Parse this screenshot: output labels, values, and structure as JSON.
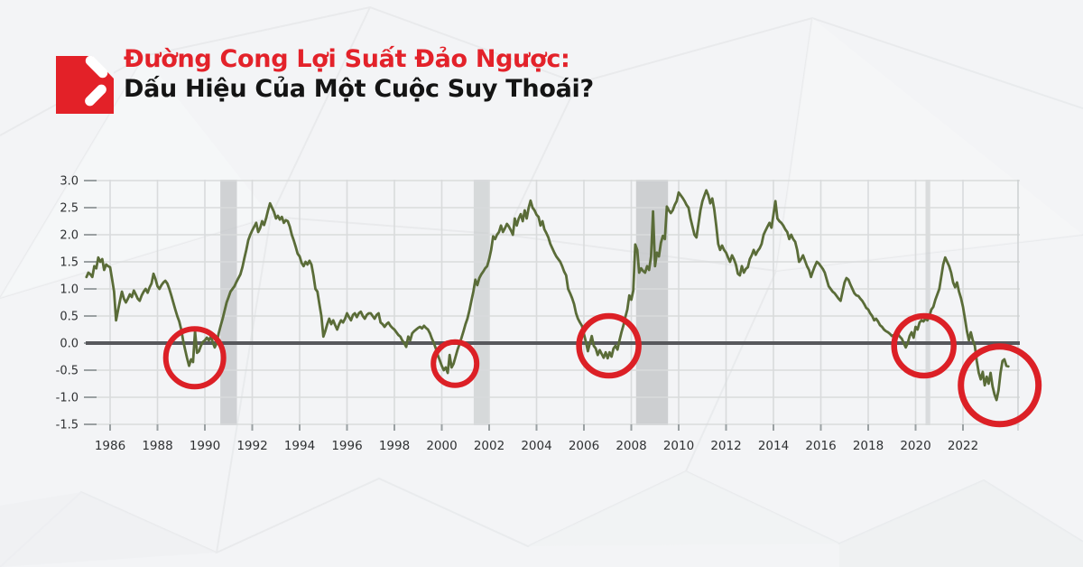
{
  "header": {
    "logo_color": "#e32128",
    "title_line1": "Đường Cong Lợi Suất Đảo Ngược:",
    "title_line1_color": "#e3222a",
    "title_line2": "Dấu Hiệu Của Một Cuộc Suy Thoái?",
    "title_line2_color": "#141414"
  },
  "chart_data": {
    "type": "line",
    "xlabel": "",
    "ylabel": "",
    "grid": true,
    "legend": false,
    "zero_line": true,
    "zero_line_color": "#57585c",
    "x_axis": {
      "range": [
        1985,
        2024.3
      ],
      "ticks": [
        1986,
        1988,
        1990,
        1992,
        1994,
        1996,
        1998,
        2000,
        2002,
        2004,
        2006,
        2008,
        2010,
        2012,
        2014,
        2016,
        2018,
        2020,
        2022
      ]
    },
    "y_axis": {
      "range": [
        -1.5,
        3.0
      ],
      "ticks": [
        3.0,
        2.5,
        2.0,
        1.5,
        1.0,
        0.5,
        0.0,
        -0.5,
        -1.0,
        -1.5
      ],
      "tick_labels": [
        "3.0",
        "2.5",
        "2.0",
        "1.5",
        "1.0",
        "0.5",
        "0.0",
        "-0.5",
        "-1.0",
        "-1.5"
      ]
    },
    "series": [
      {
        "color": "#5a6c38",
        "start_year": 1985,
        "points_per_year": 12,
        "values": [
          1.22,
          1.3,
          1.27,
          1.22,
          1.42,
          1.38,
          1.58,
          1.5,
          1.55,
          1.35,
          1.45,
          1.42,
          1.4,
          1.18,
          0.95,
          0.42,
          0.6,
          0.78,
          0.95,
          0.82,
          0.75,
          0.82,
          0.9,
          0.85,
          0.97,
          0.9,
          0.82,
          0.78,
          0.88,
          0.95,
          1.0,
          0.93,
          1.03,
          1.1,
          1.28,
          1.18,
          1.05,
          1.0,
          1.07,
          1.12,
          1.15,
          1.1,
          1.0,
          0.88,
          0.75,
          0.62,
          0.5,
          0.4,
          0.25,
          0.05,
          -0.12,
          -0.28,
          -0.42,
          -0.3,
          -0.35,
          0.22,
          -0.18,
          -0.15,
          -0.05,
          0.02,
          0.05,
          0.1,
          0.05,
          0.12,
          0.02,
          -0.08,
          0.0,
          0.18,
          0.32,
          0.45,
          0.6,
          0.75,
          0.85,
          0.95,
          1.0,
          1.05,
          1.13,
          1.2,
          1.27,
          1.4,
          1.57,
          1.72,
          1.9,
          2.0,
          2.08,
          2.15,
          2.22,
          2.05,
          2.12,
          2.25,
          2.18,
          2.3,
          2.45,
          2.58,
          2.5,
          2.42,
          2.3,
          2.35,
          2.28,
          2.33,
          2.22,
          2.27,
          2.25,
          2.15,
          2.0,
          1.9,
          1.78,
          1.65,
          1.6,
          1.48,
          1.42,
          1.5,
          1.45,
          1.52,
          1.45,
          1.25,
          1.0,
          0.95,
          0.72,
          0.5,
          0.12,
          0.22,
          0.35,
          0.45,
          0.35,
          0.42,
          0.33,
          0.25,
          0.35,
          0.42,
          0.38,
          0.45,
          0.55,
          0.48,
          0.42,
          0.52,
          0.55,
          0.48,
          0.55,
          0.58,
          0.5,
          0.45,
          0.52,
          0.55,
          0.55,
          0.5,
          0.45,
          0.52,
          0.55,
          0.38,
          0.35,
          0.3,
          0.35,
          0.38,
          0.32,
          0.28,
          0.25,
          0.2,
          0.15,
          0.12,
          0.05,
          0.0,
          -0.07,
          0.12,
          0.05,
          0.18,
          0.22,
          0.25,
          0.28,
          0.3,
          0.27,
          0.32,
          0.28,
          0.25,
          0.18,
          0.08,
          0.0,
          -0.1,
          -0.22,
          -0.32,
          -0.42,
          -0.5,
          -0.45,
          -0.55,
          -0.22,
          -0.45,
          -0.38,
          -0.25,
          -0.12,
          -0.02,
          0.1,
          0.22,
          0.35,
          0.45,
          0.6,
          0.78,
          0.95,
          1.17,
          1.07,
          1.2,
          1.27,
          1.32,
          1.38,
          1.42,
          1.55,
          1.72,
          1.97,
          1.92,
          2.0,
          2.05,
          2.17,
          2.05,
          2.12,
          2.2,
          2.15,
          2.08,
          2.0,
          2.3,
          2.17,
          2.3,
          2.38,
          2.25,
          2.45,
          2.3,
          2.5,
          2.63,
          2.5,
          2.45,
          2.37,
          2.33,
          2.17,
          2.25,
          2.1,
          2.03,
          1.95,
          1.83,
          1.75,
          1.67,
          1.6,
          1.55,
          1.5,
          1.42,
          1.32,
          1.25,
          1.0,
          0.92,
          0.83,
          0.72,
          0.55,
          0.45,
          0.38,
          0.32,
          0.17,
          0.02,
          -0.15,
          0.0,
          0.13,
          -0.05,
          -0.1,
          -0.22,
          -0.13,
          -0.2,
          -0.27,
          -0.17,
          -0.28,
          -0.17,
          -0.25,
          -0.1,
          -0.05,
          -0.12,
          0.05,
          0.2,
          0.33,
          0.48,
          0.62,
          0.88,
          0.8,
          0.97,
          1.82,
          1.72,
          1.3,
          1.38,
          1.33,
          1.3,
          1.42,
          1.35,
          1.6,
          2.43,
          1.42,
          1.67,
          1.6,
          1.85,
          1.98,
          1.92,
          2.52,
          2.45,
          2.4,
          2.45,
          2.55,
          2.62,
          2.78,
          2.73,
          2.68,
          2.62,
          2.55,
          2.5,
          2.3,
          2.15,
          2.0,
          1.95,
          2.2,
          2.45,
          2.62,
          2.72,
          2.82,
          2.73,
          2.58,
          2.67,
          2.47,
          2.17,
          1.83,
          1.72,
          1.8,
          1.72,
          1.67,
          1.58,
          1.5,
          1.62,
          1.55,
          1.45,
          1.28,
          1.25,
          1.42,
          1.3,
          1.37,
          1.4,
          1.55,
          1.62,
          1.72,
          1.63,
          1.7,
          1.75,
          1.83,
          2.0,
          2.08,
          2.15,
          2.22,
          2.13,
          2.37,
          2.62,
          2.3,
          2.25,
          2.22,
          2.17,
          2.1,
          2.05,
          1.92,
          2.0,
          1.92,
          1.87,
          1.72,
          1.5,
          1.55,
          1.62,
          1.52,
          1.42,
          1.35,
          1.22,
          1.33,
          1.42,
          1.5,
          1.47,
          1.42,
          1.37,
          1.3,
          1.17,
          1.05,
          1.0,
          0.95,
          0.92,
          0.87,
          0.82,
          0.78,
          0.95,
          1.12,
          1.2,
          1.17,
          1.08,
          1.0,
          0.92,
          0.88,
          0.87,
          0.82,
          0.78,
          0.72,
          0.65,
          0.62,
          0.55,
          0.5,
          0.42,
          0.45,
          0.4,
          0.33,
          0.3,
          0.25,
          0.22,
          0.2,
          0.17,
          0.13,
          0.15,
          0.12,
          0.17,
          0.12,
          0.08,
          0.0,
          -0.08,
          0.0,
          0.13,
          0.2,
          0.1,
          0.3,
          0.25,
          0.38,
          0.42,
          0.4,
          0.45,
          0.42,
          0.5,
          0.62,
          0.67,
          0.8,
          0.9,
          1.0,
          1.22,
          1.45,
          1.58,
          1.5,
          1.42,
          1.3,
          1.12,
          1.03,
          1.12,
          0.95,
          0.83,
          0.67,
          0.45,
          0.22,
          0.05,
          0.2,
          0.05,
          -0.05,
          -0.33,
          -0.55,
          -0.67,
          -0.53,
          -0.78,
          -0.62,
          -0.75,
          -0.55,
          -0.8,
          -0.95,
          -1.05,
          -0.87,
          -0.55,
          -0.33,
          -0.3,
          -0.42,
          -0.43
        ]
      }
    ],
    "recession_bands": {
      "color": "#c3c6c8",
      "bands": [
        {
          "start": 1990.65,
          "end": 1991.35,
          "opacity": 0.75
        },
        {
          "start": 2001.35,
          "end": 2002.0,
          "opacity": 0.6
        },
        {
          "start": 2008.2,
          "end": 2009.55,
          "opacity": 0.8
        },
        {
          "start": 2020.42,
          "end": 2020.62,
          "opacity": 0.55
        }
      ]
    },
    "inversion_circles": {
      "color": "#dc2026",
      "circles": [
        {
          "x": 1989.57,
          "y": -0.27,
          "r": 32,
          "stroke": 6
        },
        {
          "x": 2000.56,
          "y": -0.38,
          "r": 24,
          "stroke": 6
        },
        {
          "x": 2007.05,
          "y": -0.05,
          "r": 33,
          "stroke": 6.5
        },
        {
          "x": 2020.35,
          "y": -0.05,
          "r": 33,
          "stroke": 6.5
        },
        {
          "x": 2023.55,
          "y": -0.78,
          "r": 43,
          "stroke": 7
        }
      ]
    }
  }
}
